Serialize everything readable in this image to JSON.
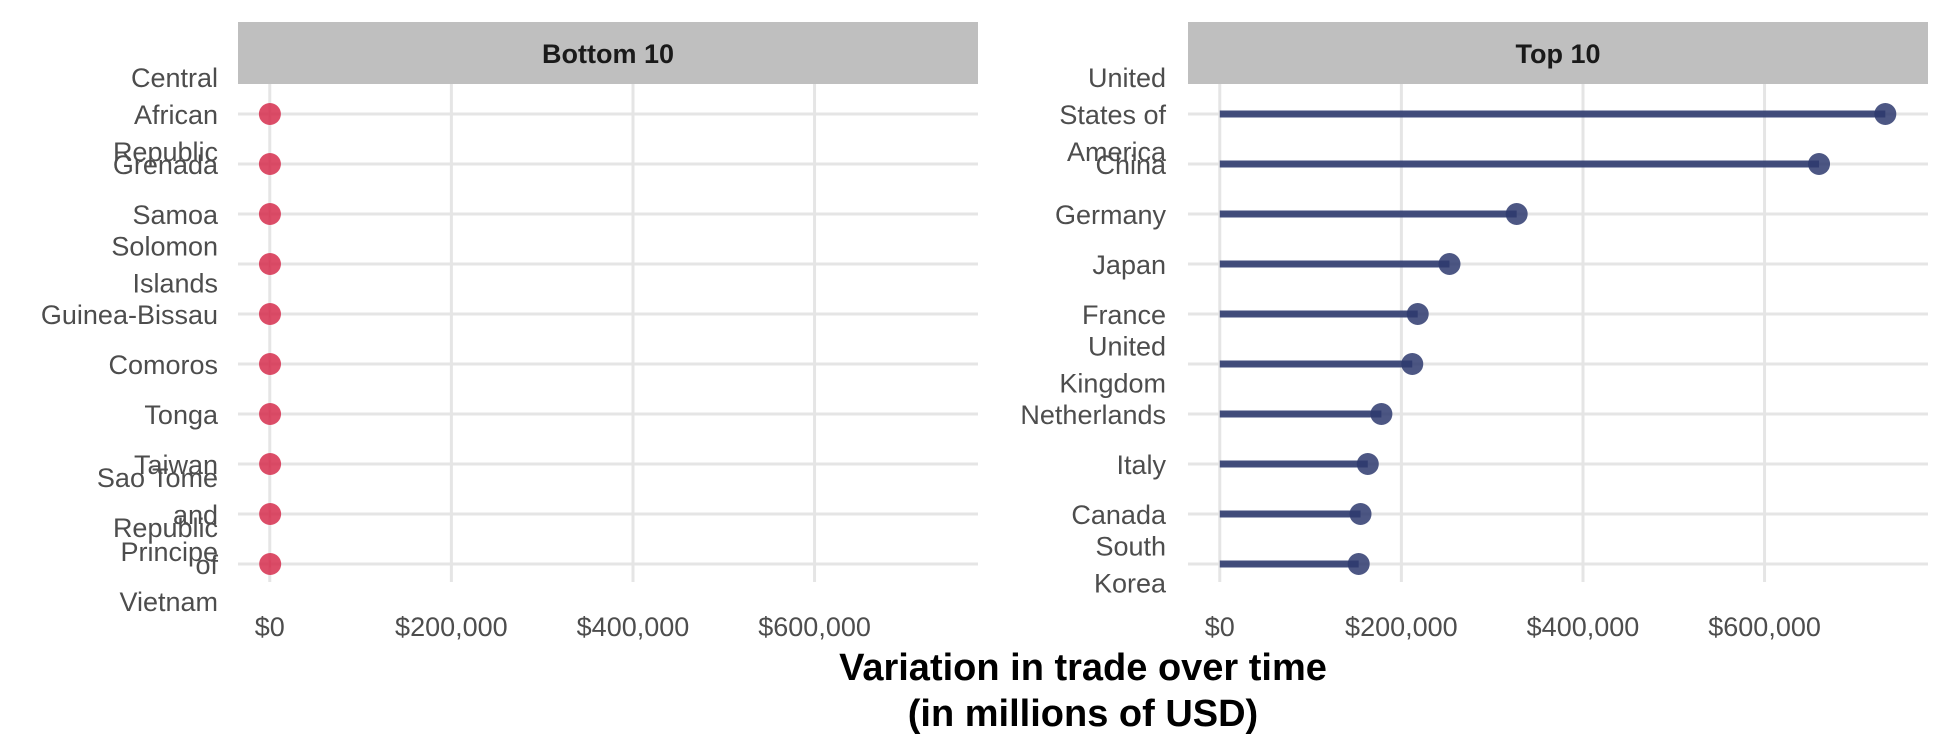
{
  "chart_data": {
    "type": "lollipop",
    "xlabel": [
      "Variation in trade over time",
      "(in millions of USD)"
    ],
    "xlim": [
      -35000,
      780000
    ],
    "xticks": [
      0,
      200000,
      400000,
      600000
    ],
    "xtick_labels": [
      "$0",
      "$200,000",
      "$400,000",
      "$600,000"
    ],
    "grid": true,
    "panels": [
      {
        "title": "Bottom 10",
        "color": "#d62e4d",
        "categories": [
          [
            "Central",
            "African",
            "Republic"
          ],
          [
            "Grenada"
          ],
          [
            "Samoa"
          ],
          [
            "Solomon",
            "Islands"
          ],
          [
            "Guinea-Bissau"
          ],
          [
            "Comoros"
          ],
          [
            "Tonga"
          ],
          [
            "Taiwan"
          ],
          [
            "Sao Tome",
            "and",
            "Principe"
          ],
          [
            "Republic",
            "of",
            "Vietnam"
          ]
        ],
        "values": [
          120,
          150,
          180,
          200,
          230,
          260,
          300,
          350,
          400,
          450
        ]
      },
      {
        "title": "Top 10",
        "color": "#2e3a6e",
        "categories": [
          [
            "United",
            "States of",
            "America"
          ],
          [
            "China"
          ],
          [
            "Germany"
          ],
          [
            "Japan"
          ],
          [
            "France"
          ],
          [
            "United",
            "Kingdom"
          ],
          [
            "Netherlands"
          ],
          [
            "Italy"
          ],
          [
            "Canada"
          ],
          [
            "South",
            "Korea"
          ]
        ],
        "values": [
          733000,
          660000,
          327000,
          253000,
          218000,
          212000,
          178000,
          163000,
          155000,
          153000
        ]
      }
    ]
  }
}
